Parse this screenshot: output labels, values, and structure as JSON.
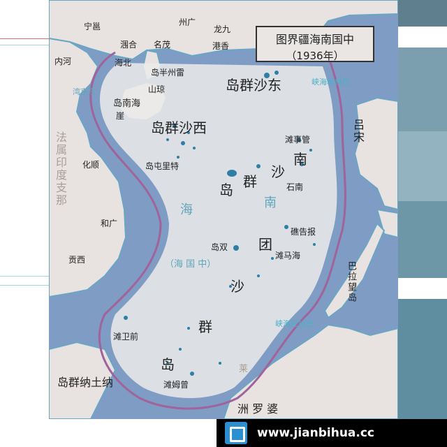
{
  "map_title": {
    "line1": "图界疆海南国中",
    "line2": "（1936年）"
  },
  "archipelagos": {
    "dongsha": "岛群沙东",
    "xisha": "岛群沙西",
    "zhongsha_col1": "岛 群 沙",
    "zhongsha_col2": "南",
    "nansha_a": "团",
    "nansha_b": "沙",
    "nansha_c": "群",
    "nansha_d": "岛",
    "natuna": "岛群纳土纳"
  },
  "places": {
    "ningming": "宁邕",
    "hepu": "涠合",
    "maoming": "名茂",
    "guangzhou": "州广",
    "jiulong": "龙九",
    "xianggang": "港香",
    "haibei": "海北",
    "leizhou": "岛半州雷",
    "qiongshan": "山琼",
    "hainan": "岛南海",
    "ya": "崖",
    "neihe": "内河",
    "shunhua": "化顺",
    "tezhong": "岛屯里特",
    "guanshi": "滩事管",
    "nanshi": "石南",
    "baogao": "礁告报",
    "shuangdao": "岛双",
    "mahai": "滩马海",
    "guangheting": "和广",
    "gongxi": "贡西",
    "weiqian": "滩卫前",
    "zengmu": "滩姆曾"
  },
  "regions": {
    "fashu": "法属印度支那",
    "lvsong": "吕宋",
    "balawang": "巴拉望岛",
    "zhouluopo": "洲 罗 婆",
    "lai": "莱"
  },
  "seas": {
    "south_sea_a": "海",
    "south_sea_b": "南",
    "china_sea": "（海  国  中）",
    "beibu": "湾京东",
    "balintang": "峡海坦林巴",
    "balabac": "峡海巴拉巴"
  },
  "watermark": {
    "site": "www.jianbihua.cc"
  },
  "colors": {
    "sea": "#7f9cc4",
    "land": "#e8e3e1",
    "boundary": "#a0639a",
    "island": "#2f7fa5"
  }
}
